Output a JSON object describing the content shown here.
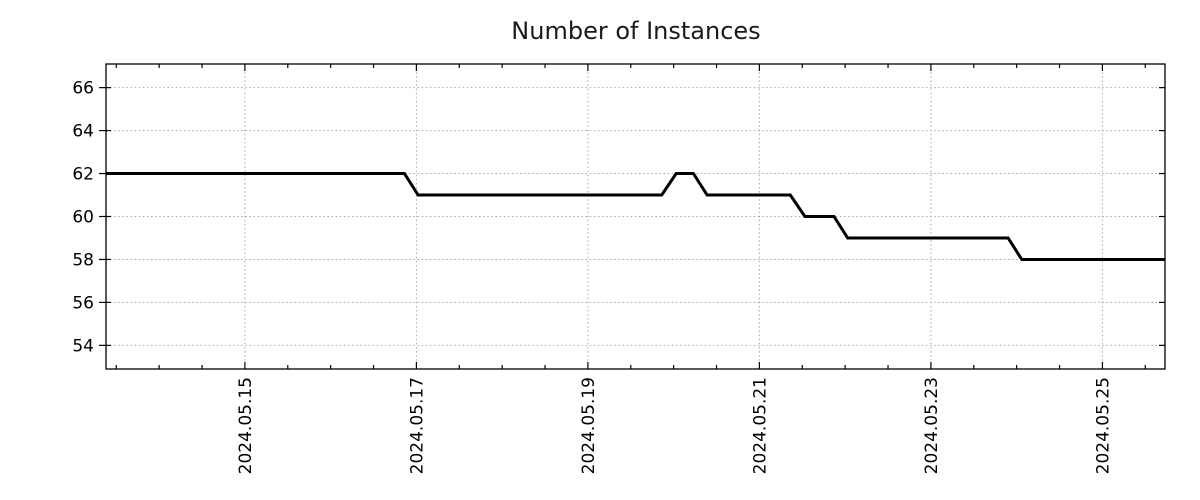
{
  "chart_data": {
    "type": "line",
    "title": "Number of Instances",
    "x_axis": {
      "unit": "date",
      "tick_labels": [
        "2024.05.15",
        "2024.05.17",
        "2024.05.19",
        "2024.05.21",
        "2024.05.23",
        "2024.05.25"
      ],
      "tick_values": [
        15,
        17,
        19,
        21,
        23,
        25
      ],
      "minor_tick_interval_days": 0.5,
      "xlim": [
        13.38,
        25.73
      ],
      "label_rotation_deg": 90
    },
    "y_axis": {
      "tick_labels": [
        "54",
        "56",
        "58",
        "60",
        "62",
        "64",
        "66"
      ],
      "tick_values": [
        54,
        56,
        58,
        60,
        62,
        64,
        66
      ],
      "ylim": [
        52.9,
        67.1
      ]
    },
    "grid": {
      "show": true,
      "style": "dotted",
      "color": "#a8a8a8"
    },
    "legend": {
      "show": false
    },
    "series": [
      {
        "name": "Number of Instances",
        "color": "#000000",
        "line_width": 3,
        "points": [
          [
            13.38,
            62
          ],
          [
            16.86,
            62
          ],
          [
            17.02,
            61
          ],
          [
            19.86,
            61
          ],
          [
            20.03,
            62
          ],
          [
            20.23,
            62
          ],
          [
            20.39,
            61
          ],
          [
            21.36,
            61
          ],
          [
            21.53,
            60
          ],
          [
            21.87,
            60
          ],
          [
            22.03,
            59
          ],
          [
            23.9,
            59
          ],
          [
            24.06,
            58
          ],
          [
            25.73,
            58
          ]
        ]
      }
    ]
  }
}
